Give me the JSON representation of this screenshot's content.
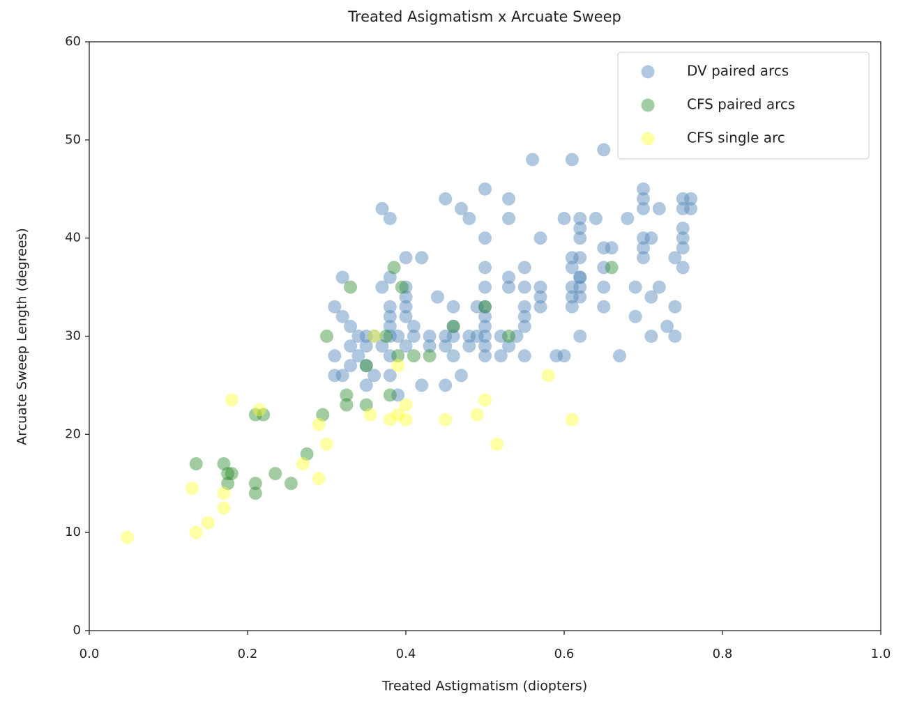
{
  "chart_data": {
    "type": "scatter",
    "title": "Treated Asigmatism x Arcuate Sweep",
    "x_label": "Treated Astigmatism (diopters)",
    "y_label": "Arcuate Sweep Length (degrees)",
    "xlim": [
      0,
      1
    ],
    "ylim": [
      0,
      60
    ],
    "xticks": [
      {
        "value": 0,
        "label": "0.0"
      },
      0.2,
      0.4,
      0.6,
      0.8,
      {
        "value": 1,
        "label": "1.0"
      }
    ],
    "yticks": [
      0,
      10,
      20,
      30,
      40,
      50,
      60
    ],
    "legend": "upper right",
    "series": [
      {
        "name": "DV paired arcs",
        "color": "#4f86b9",
        "x": [
          0.31,
          0.31,
          0.31,
          0.32,
          0.32,
          0.32,
          0.33,
          0.33,
          0.33,
          0.34,
          0.34,
          0.35,
          0.35,
          0.35,
          0.35,
          0.36,
          0.36,
          0.37,
          0.37,
          0.37,
          0.38,
          0.38,
          0.38,
          0.38,
          0.38,
          0.38,
          0.38,
          0.38,
          0.39,
          0.39,
          0.4,
          0.4,
          0.4,
          0.4,
          0.4,
          0.4,
          0.41,
          0.41,
          0.42,
          0.42,
          0.43,
          0.43,
          0.44,
          0.45,
          0.45,
          0.45,
          0.45,
          0.46,
          0.46,
          0.46,
          0.46,
          0.47,
          0.47,
          0.48,
          0.48,
          0.48,
          0.49,
          0.49,
          0.5,
          0.5,
          0.5,
          0.5,
          0.5,
          0.5,
          0.5,
          0.5,
          0.5,
          0.5,
          0.52,
          0.52,
          0.53,
          0.53,
          0.53,
          0.53,
          0.53,
          0.54,
          0.55,
          0.55,
          0.55,
          0.55,
          0.55,
          0.55,
          0.56,
          0.57,
          0.57,
          0.57,
          0.57,
          0.59,
          0.6,
          0.6,
          0.61,
          0.61,
          0.61,
          0.61,
          0.61,
          0.61,
          0.62,
          0.62,
          0.62,
          0.62,
          0.62,
          0.62,
          0.62,
          0.62,
          0.62,
          0.64,
          0.65,
          0.65,
          0.65,
          0.65,
          0.65,
          0.66,
          0.67,
          0.68,
          0.69,
          0.69,
          0.7,
          0.7,
          0.7,
          0.7,
          0.7,
          0.7,
          0.71,
          0.71,
          0.71,
          0.72,
          0.72,
          0.73,
          0.74,
          0.74,
          0.74,
          0.75,
          0.75,
          0.75,
          0.75,
          0.75,
          0.75,
          0.76,
          0.76
        ],
        "y": [
          28,
          33,
          26,
          36,
          32,
          26,
          31,
          29,
          27,
          30,
          28,
          25,
          30,
          29,
          27,
          26,
          30,
          43,
          35,
          29,
          33,
          32,
          31,
          30,
          28,
          26,
          42,
          36,
          24,
          30,
          34,
          29,
          33,
          32,
          38,
          35,
          30,
          31,
          38,
          25,
          30,
          29,
          34,
          30,
          29,
          25,
          44,
          33,
          31,
          30,
          28,
          43,
          26,
          42,
          30,
          29,
          33,
          30,
          37,
          45,
          40,
          35,
          33,
          32,
          31,
          30,
          29,
          28,
          30,
          28,
          29,
          44,
          36,
          35,
          42,
          30,
          28,
          37,
          35,
          33,
          32,
          31,
          48,
          34,
          40,
          35,
          33,
          28,
          28,
          42,
          48,
          38,
          37,
          35,
          34,
          33,
          35,
          42,
          41,
          40,
          38,
          36,
          34,
          30,
          36,
          42,
          49,
          39,
          37,
          35,
          33,
          39,
          28,
          42,
          35,
          32,
          45,
          44,
          43,
          40,
          39,
          38,
          40,
          34,
          30,
          35,
          43,
          31,
          30,
          33,
          38,
          44,
          43,
          41,
          40,
          39,
          37,
          44,
          43
        ]
      },
      {
        "name": "CFS paired arcs",
        "color": "#2e8b2e",
        "x": [
          0.135,
          0.17,
          0.175,
          0.175,
          0.18,
          0.21,
          0.21,
          0.21,
          0.22,
          0.235,
          0.255,
          0.275,
          0.295,
          0.3,
          0.325,
          0.325,
          0.33,
          0.35,
          0.35,
          0.38,
          0.385,
          0.39,
          0.395,
          0.41,
          0.43,
          0.46,
          0.5,
          0.53,
          0.66,
          0.375
        ],
        "y": [
          17,
          17,
          15,
          16,
          16,
          22,
          15,
          14,
          22,
          16,
          15,
          18,
          22,
          30,
          24,
          23,
          35,
          27,
          23,
          24,
          37,
          28,
          35,
          28,
          28,
          31,
          33,
          30,
          37,
          30
        ]
      },
      {
        "name": "CFS single arc",
        "color": "#ffff33",
        "x": [
          0.048,
          0.13,
          0.135,
          0.15,
          0.17,
          0.17,
          0.18,
          0.215,
          0.27,
          0.29,
          0.29,
          0.3,
          0.355,
          0.36,
          0.38,
          0.39,
          0.39,
          0.4,
          0.4,
          0.45,
          0.49,
          0.5,
          0.515,
          0.58,
          0.61
        ],
        "y": [
          9.5,
          14.5,
          10,
          11,
          12.5,
          14,
          23.5,
          22.5,
          17,
          15.5,
          21,
          19,
          22,
          30,
          21.5,
          27,
          22,
          23,
          21.5,
          21.5,
          22,
          23.5,
          19,
          26,
          21.5
        ]
      }
    ]
  }
}
